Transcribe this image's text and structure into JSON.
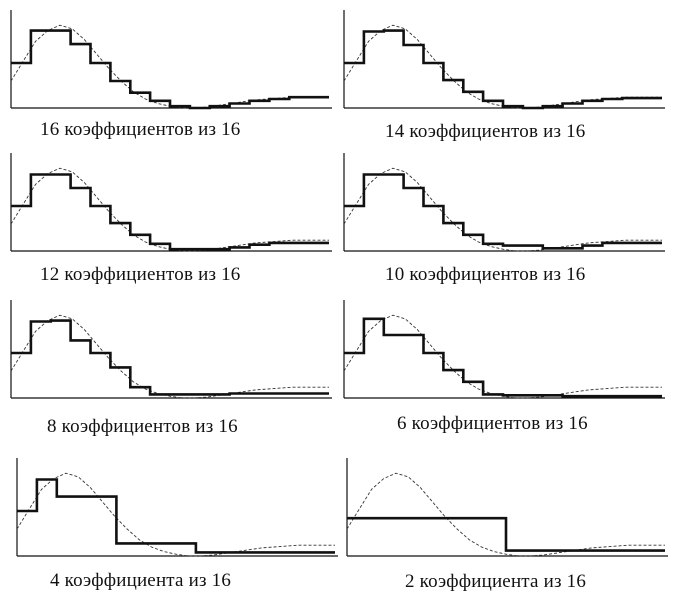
{
  "captions": [
    "16 коэффициентов из 16",
    "14 коэффициентов из 16",
    "12 коэффициентов из 16",
    "10 коэффициентов из 16",
    "8 коэффициентов из 16",
    "6 коэффициентов из 16",
    "4 коэффициента из 16",
    "2 коэффициента из 16"
  ],
  "panels": [
    {
      "coefficients_kept": 16,
      "step_values": [
        0.5,
        0.86,
        0.86,
        0.71,
        0.5,
        0.3,
        0.17,
        0.08,
        0.02,
        0.0,
        0.02,
        0.05,
        0.08,
        0.1,
        0.12,
        0.12
      ]
    },
    {
      "coefficients_kept": 14,
      "step_values": [
        0.5,
        0.85,
        0.86,
        0.7,
        0.5,
        0.31,
        0.18,
        0.08,
        0.02,
        0.0,
        0.02,
        0.05,
        0.08,
        0.1,
        0.11,
        0.11
      ]
    },
    {
      "coefficients_kept": 12,
      "step_values": [
        0.5,
        0.85,
        0.85,
        0.7,
        0.5,
        0.31,
        0.18,
        0.08,
        0.02,
        0.02,
        0.02,
        0.04,
        0.07,
        0.09,
        0.09,
        0.09
      ]
    },
    {
      "coefficients_kept": 10,
      "step_values": [
        0.5,
        0.85,
        0.85,
        0.7,
        0.5,
        0.31,
        0.18,
        0.08,
        0.06,
        0.06,
        0.03,
        0.03,
        0.06,
        0.09,
        0.09,
        0.09
      ]
    },
    {
      "coefficients_kept": 8,
      "step_values": [
        0.5,
        0.85,
        0.86,
        0.64,
        0.5,
        0.34,
        0.12,
        0.04,
        0.04,
        0.04,
        0.04,
        0.05,
        0.05,
        0.05,
        0.05,
        0.05
      ]
    },
    {
      "coefficients_kept": 6,
      "step_values": [
        0.5,
        0.88,
        0.7,
        0.7,
        0.5,
        0.31,
        0.18,
        0.04,
        0.03,
        0.03,
        0.03,
        0.02,
        0.02,
        0.02,
        0.02,
        0.02
      ]
    },
    {
      "coefficients_kept": 4,
      "step_values": [
        0.5,
        0.85,
        0.66,
        0.66,
        0.66,
        0.14,
        0.14,
        0.14,
        0.14,
        0.04,
        0.04,
        0.04,
        0.04,
        0.04,
        0.04,
        0.04
      ]
    },
    {
      "coefficients_kept": 2,
      "step_values": [
        0.42,
        0.42,
        0.42,
        0.42,
        0.42,
        0.42,
        0.42,
        0.42,
        0.06,
        0.06,
        0.06,
        0.06,
        0.06,
        0.06,
        0.06,
        0.06
      ]
    }
  ],
  "original_curve": [
    0.3,
    0.52,
    0.74,
    0.86,
    0.92,
    0.88,
    0.76,
    0.6,
    0.44,
    0.3,
    0.18,
    0.1,
    0.05,
    0.02,
    0.0,
    0.0,
    0.01,
    0.03,
    0.05,
    0.07,
    0.09,
    0.1,
    0.11,
    0.12,
    0.12,
    0.12,
    0.12
  ],
  "colors": {
    "step_line": "#111111",
    "curve_line": "#333333",
    "axis": "#111111"
  }
}
